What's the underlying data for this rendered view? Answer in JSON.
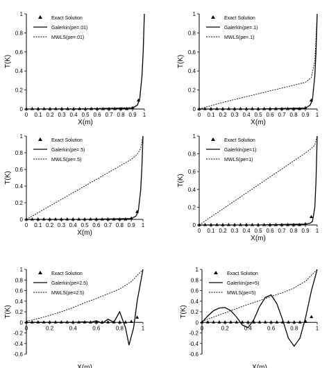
{
  "chart_data": [
    {
      "type": "line",
      "xlabel": "X(m)",
      "ylabel": "T(K)",
      "xlim": [
        0,
        1
      ],
      "ylim": [
        0,
        1
      ],
      "xticks": [
        "0",
        "0.1",
        "0.2",
        "0.3",
        "0.4",
        "0.5",
        "0.6",
        "0.7",
        "0.8",
        "0.9",
        "1"
      ],
      "yticks": [
        "0",
        "0.2",
        "0.4",
        "0.6",
        "0.8",
        "1"
      ],
      "legend_position": "top-left",
      "series": [
        {
          "name": "Exact Solution",
          "style": "triangles",
          "x": [
            0,
            0.05,
            0.1,
            0.15,
            0.2,
            0.25,
            0.3,
            0.35,
            0.4,
            0.45,
            0.5,
            0.55,
            0.6,
            0.65,
            0.7,
            0.75,
            0.8,
            0.85,
            0.9,
            0.95
          ],
          "y": [
            0,
            0,
            0,
            0,
            0,
            0,
            0,
            0,
            0,
            0,
            0,
            0,
            0,
            0,
            0,
            0,
            0,
            0,
            0.01,
            0.09
          ]
        },
        {
          "name": "Galerkin(pe=.01)",
          "style": "solid",
          "x": [
            0,
            0.5,
            0.9,
            0.94,
            0.96,
            0.98,
            0.99,
            1
          ],
          "y": [
            0,
            0,
            0.01,
            0.04,
            0.1,
            0.35,
            0.6,
            1
          ]
        },
        {
          "name": "MWLS(pe=.01)",
          "style": "dashed",
          "x": [
            0,
            0.5,
            0.9,
            0.94,
            0.96,
            0.98,
            0.99,
            1
          ],
          "y": [
            0,
            0.005,
            0.015,
            0.04,
            0.1,
            0.35,
            0.6,
            1
          ]
        }
      ]
    },
    {
      "type": "line",
      "xlabel": "X(m)",
      "ylabel": "T(K)",
      "xlim": [
        0,
        1
      ],
      "ylim": [
        0,
        1
      ],
      "xticks": [
        "0",
        "0.1",
        "0.2",
        "0.3",
        "0.4",
        "0.5",
        "0.6",
        "0.7",
        "0.8",
        "0.9",
        "1"
      ],
      "yticks": [
        "0",
        "0.2",
        "0.4",
        "0.6",
        "0.8",
        "1"
      ],
      "legend_position": "top-left",
      "series": [
        {
          "name": "Exact Solution",
          "style": "triangles",
          "x": [
            0,
            0.05,
            0.1,
            0.15,
            0.2,
            0.25,
            0.3,
            0.35,
            0.4,
            0.45,
            0.5,
            0.55,
            0.6,
            0.65,
            0.7,
            0.75,
            0.8,
            0.85,
            0.9,
            0.95
          ],
          "y": [
            0,
            0,
            0,
            0,
            0,
            0,
            0,
            0,
            0,
            0,
            0,
            0,
            0,
            0,
            0,
            0,
            0,
            0,
            0.01,
            0.09
          ]
        },
        {
          "name": "Galerkin(pe=.1)",
          "style": "solid",
          "x": [
            0,
            0.5,
            0.9,
            0.94,
            0.96,
            0.98,
            0.99,
            1
          ],
          "y": [
            0,
            0,
            0.01,
            0.04,
            0.1,
            0.35,
            0.6,
            1
          ]
        },
        {
          "name": "MWLS(pe=.1)",
          "style": "dashed",
          "x": [
            0,
            0.1,
            0.2,
            0.3,
            0.4,
            0.5,
            0.6,
            0.7,
            0.8,
            0.9,
            0.95,
            0.98,
            1
          ],
          "y": [
            0,
            0.035,
            0.07,
            0.1,
            0.13,
            0.16,
            0.19,
            0.22,
            0.25,
            0.28,
            0.33,
            0.5,
            1
          ]
        }
      ]
    },
    {
      "type": "line",
      "xlabel": "X(m)",
      "ylabel": "T(K)",
      "xlim": [
        0,
        1
      ],
      "ylim": [
        0,
        1
      ],
      "xticks": [
        "0",
        "0.1",
        "0.2",
        "0.3",
        "0.4",
        "0.5",
        "0.6",
        "0.7",
        "0.8",
        "0.9",
        "1"
      ],
      "yticks": [
        "0",
        "0.2",
        "0.4",
        "0.6",
        "0.8",
        "1"
      ],
      "legend_position": "top-left",
      "series": [
        {
          "name": "Exact Solution",
          "style": "triangles",
          "x": [
            0,
            0.05,
            0.1,
            0.15,
            0.2,
            0.25,
            0.3,
            0.35,
            0.4,
            0.45,
            0.5,
            0.55,
            0.6,
            0.65,
            0.7,
            0.75,
            0.8,
            0.85,
            0.9,
            0.95
          ],
          "y": [
            0,
            0,
            0,
            0,
            0,
            0,
            0,
            0,
            0,
            0,
            0,
            0,
            0,
            0,
            0,
            0,
            0,
            0,
            0.01,
            0.09
          ]
        },
        {
          "name": "Galerkin(pe=.5)",
          "style": "solid",
          "x": [
            0,
            0.5,
            0.9,
            0.94,
            0.96,
            0.98,
            0.99,
            1
          ],
          "y": [
            0,
            0,
            0.01,
            0.04,
            0.1,
            0.35,
            0.6,
            1
          ]
        },
        {
          "name": "MWLS(pe=.5)",
          "style": "dashed",
          "x": [
            0,
            0.1,
            0.2,
            0.3,
            0.4,
            0.5,
            0.6,
            0.7,
            0.8,
            0.9,
            0.95,
            0.98,
            1
          ],
          "y": [
            0,
            0.08,
            0.16,
            0.24,
            0.32,
            0.4,
            0.48,
            0.56,
            0.64,
            0.72,
            0.78,
            0.85,
            1
          ]
        }
      ]
    },
    {
      "type": "line",
      "xlabel": "X(m)",
      "ylabel": "T(K)",
      "xlim": [
        0,
        1
      ],
      "ylim": [
        0,
        1
      ],
      "xticks": [
        "0",
        "0.1",
        "0.2",
        "0.3",
        "0.4",
        "0.5",
        "0.6",
        "0.7",
        "0.8",
        "0.9",
        "1"
      ],
      "yticks": [
        "0",
        "0.2",
        "0.4",
        "0.6",
        "0.8",
        "1"
      ],
      "legend_position": "top-left",
      "series": [
        {
          "name": "Exact Solution",
          "style": "triangles",
          "x": [
            0,
            0.05,
            0.1,
            0.15,
            0.2,
            0.25,
            0.3,
            0.35,
            0.4,
            0.45,
            0.5,
            0.55,
            0.6,
            0.65,
            0.7,
            0.75,
            0.8,
            0.85,
            0.9,
            0.95
          ],
          "y": [
            0,
            0,
            0,
            0,
            0,
            0,
            0,
            0,
            0,
            0,
            0,
            0,
            0,
            0,
            0,
            0,
            0,
            0,
            0.01,
            0.09
          ]
        },
        {
          "name": "Galerkin(pe=1)",
          "style": "solid",
          "x": [
            0,
            0.5,
            0.9,
            0.94,
            0.96,
            0.98,
            0.99,
            1
          ],
          "y": [
            0,
            0,
            0.01,
            0.02,
            0.04,
            0.2,
            0.5,
            1
          ]
        },
        {
          "name": "MWLS(pe=1)",
          "style": "dashed",
          "x": [
            0,
            0.1,
            0.2,
            0.3,
            0.4,
            0.5,
            0.6,
            0.7,
            0.8,
            0.9,
            0.95,
            0.98,
            1
          ],
          "y": [
            0,
            0.09,
            0.18,
            0.27,
            0.36,
            0.45,
            0.54,
            0.63,
            0.72,
            0.81,
            0.86,
            0.9,
            1
          ]
        }
      ]
    },
    {
      "type": "line",
      "xlabel": "X(m)",
      "ylabel": "T(K)",
      "xlim": [
        0,
        1
      ],
      "ylim": [
        -0.6,
        1
      ],
      "xticks": [
        "0",
        "0.2",
        "0.4",
        "0.6",
        "0.8",
        "1"
      ],
      "yticks": [
        "-0.6",
        "-0.4",
        "-0.2",
        "0",
        "0.2",
        "0.4",
        "0.6",
        "0.8",
        "1"
      ],
      "legend_position": "top-left",
      "series": [
        {
          "name": "Exact Solution",
          "style": "triangles",
          "x": [
            0,
            0.05,
            0.1,
            0.15,
            0.2,
            0.25,
            0.3,
            0.35,
            0.4,
            0.45,
            0.5,
            0.55,
            0.6,
            0.65,
            0.7,
            0.75,
            0.8,
            0.85,
            0.9,
            0.95
          ],
          "y": [
            0,
            0,
            0,
            0,
            0,
            0,
            0,
            0,
            0,
            0,
            0,
            0,
            0,
            0,
            0,
            0,
            0,
            0,
            0.01,
            0.09
          ]
        },
        {
          "name": "Galerkin(pe=2.5)",
          "style": "solid",
          "x": [
            0,
            0.4,
            0.5,
            0.55,
            0.6,
            0.65,
            0.7,
            0.75,
            0.8,
            0.85,
            0.88,
            0.92,
            0.95,
            1
          ],
          "y": [
            0,
            0,
            0.01,
            0,
            0.03,
            -0.02,
            0.06,
            0,
            0.2,
            -0.1,
            -0.43,
            -0.1,
            0.4,
            1
          ]
        },
        {
          "name": "MWLS(pe=2.5)",
          "style": "dashed",
          "x": [
            0,
            0.1,
            0.2,
            0.3,
            0.4,
            0.5,
            0.6,
            0.7,
            0.8,
            0.9,
            1
          ],
          "y": [
            0.02,
            0.07,
            0.13,
            0.2,
            0.28,
            0.37,
            0.45,
            0.54,
            0.63,
            0.77,
            1
          ]
        }
      ]
    },
    {
      "type": "line",
      "xlabel": "X(m)",
      "ylabel": "T(K)",
      "xlim": [
        0,
        1
      ],
      "ylim": [
        -0.6,
        1
      ],
      "xticks": [
        "0",
        "0.2",
        "0.4",
        "0.6",
        "0.8",
        "1"
      ],
      "yticks": [
        "-0.6",
        "-0.4",
        "-0.2",
        "0",
        "0.2",
        "0.4",
        "0.6",
        "0.8",
        "1"
      ],
      "legend_position": "top-left",
      "series": [
        {
          "name": "Exact Solution",
          "style": "triangles",
          "x": [
            0,
            0.05,
            0.1,
            0.15,
            0.2,
            0.25,
            0.3,
            0.35,
            0.4,
            0.45,
            0.5,
            0.55,
            0.6,
            0.65,
            0.7,
            0.75,
            0.8,
            0.85,
            0.9,
            0.95
          ],
          "y": [
            0,
            0,
            0,
            0,
            0,
            0,
            0,
            0,
            0,
            0,
            0,
            0,
            0,
            0,
            0,
            0,
            0,
            0,
            0.01,
            0.1
          ]
        },
        {
          "name": "Galerkin(pe=5)",
          "style": "solid",
          "x": [
            0,
            0.05,
            0.1,
            0.15,
            0.2,
            0.25,
            0.3,
            0.35,
            0.4,
            0.45,
            0.5,
            0.55,
            0.6,
            0.65,
            0.7,
            0.75,
            0.8,
            0.85,
            0.9,
            0.95,
            1
          ],
          "y": [
            0,
            0.12,
            0.22,
            0.27,
            0.28,
            0.22,
            0.1,
            -0.05,
            -0.1,
            0.05,
            0.3,
            0.47,
            0.52,
            0.35,
            0.05,
            -0.3,
            -0.45,
            -0.3,
            0.1,
            0.6,
            1
          ]
        },
        {
          "name": "MWLS(pe=5)",
          "style": "dashed",
          "x": [
            0,
            0.1,
            0.2,
            0.3,
            0.4,
            0.5,
            0.6,
            0.7,
            0.8,
            0.9,
            1
          ],
          "y": [
            0.02,
            0.1,
            0.18,
            0.26,
            0.34,
            0.41,
            0.49,
            0.56,
            0.65,
            0.78,
            1
          ]
        }
      ]
    }
  ]
}
